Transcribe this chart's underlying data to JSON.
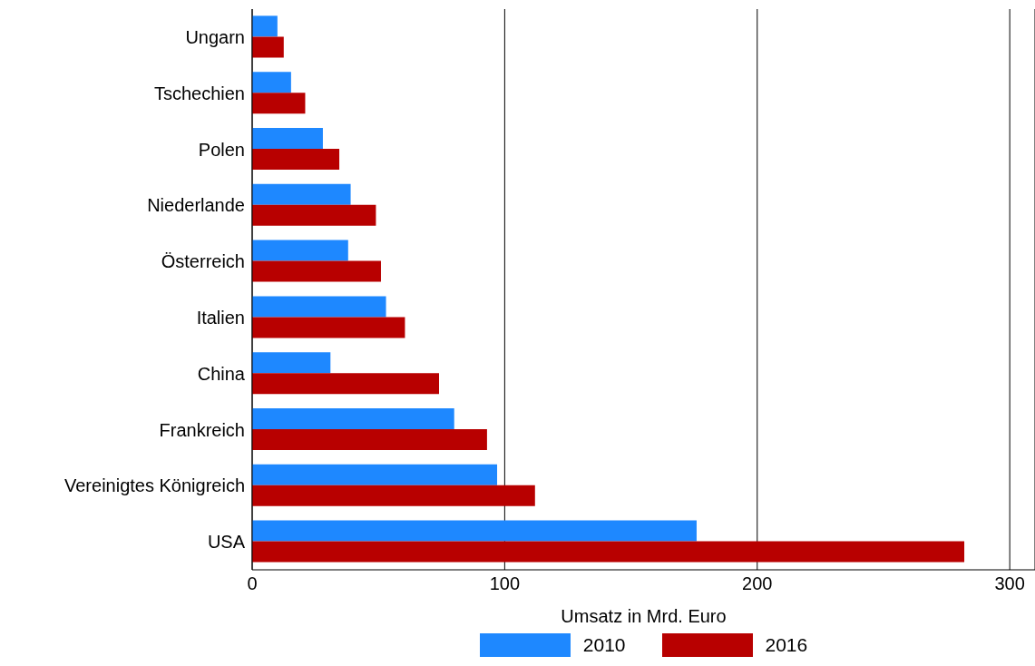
{
  "chart_data": {
    "type": "bar",
    "orientation": "horizontal",
    "xlabel": "Umsatz in Mrd. Euro",
    "categories": [
      "Ungarn",
      "Tschechien",
      "Polen",
      "Niederlande",
      "Österreich",
      "Italien",
      "China",
      "Frankreich",
      "Vereinigtes Königreich",
      "USA"
    ],
    "series": [
      {
        "name": "2010",
        "color": "#1e88ff",
        "values": [
          10,
          15.4,
          28,
          39,
          38,
          53,
          31,
          80,
          97,
          176
        ]
      },
      {
        "name": "2016",
        "color": "#b80000",
        "values": [
          12.5,
          21,
          34.5,
          49,
          51,
          60.5,
          74,
          93,
          112,
          282
        ]
      }
    ],
    "xlim": [
      0,
      310
    ],
    "xticks": [
      0,
      100,
      200,
      300
    ],
    "grid": "x",
    "legend": "bottom"
  }
}
